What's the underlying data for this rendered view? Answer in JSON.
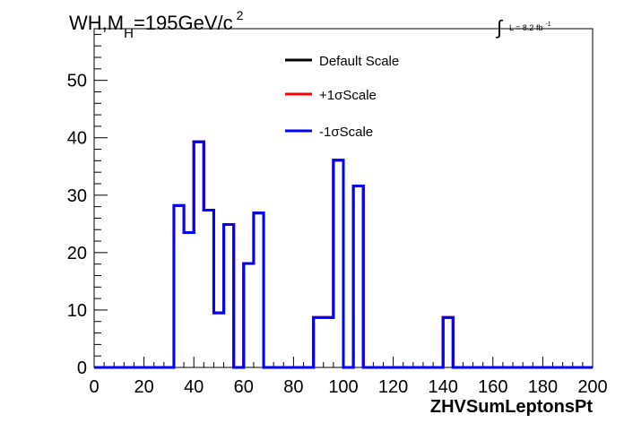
{
  "title": {
    "main": "WH,M",
    "subscript": "H",
    "value": "=195GeV/c",
    "superscript": "2"
  },
  "lumi": {
    "integral_symbol": "∫",
    "text": "L = 8.2 fb",
    "superscript": "-1"
  },
  "legend": [
    {
      "label": "Default Scale",
      "color": "#000000"
    },
    {
      "label": "+1σScale",
      "color": "#ff0000"
    },
    {
      "label": "-1σScale",
      "color": "#0000ff"
    }
  ],
  "chart_data": {
    "type": "line",
    "style": "step-histogram",
    "xlabel": "ZHVSumLeptonsPt",
    "ylabel": "",
    "xlim": [
      0,
      200
    ],
    "ylim": [
      0,
      59
    ],
    "x_ticks": [
      0,
      20,
      40,
      60,
      80,
      100,
      120,
      140,
      160,
      180,
      200
    ],
    "y_ticks": [
      0,
      10,
      20,
      30,
      40,
      50
    ],
    "bin_edges": [
      0,
      32,
      36,
      40,
      44,
      48,
      52,
      56,
      60,
      64,
      68,
      72,
      76,
      80,
      84,
      88,
      92,
      96,
      100,
      104,
      108,
      112,
      116,
      120,
      124,
      128,
      132,
      136,
      140,
      144,
      148,
      152,
      156,
      160,
      164,
      168,
      172,
      176,
      180,
      184,
      188,
      192,
      196,
      200
    ],
    "series": [
      {
        "name": "Default Scale",
        "color": "#000000",
        "values": [
          0,
          28.2,
          23.5,
          39.3,
          27.4,
          9.5,
          24.9,
          0,
          18.1,
          26.9,
          0,
          0,
          0,
          0,
          0,
          8.7,
          8.7,
          36.1,
          0,
          31.6,
          0,
          0,
          0,
          0,
          0,
          0,
          0,
          0,
          8.7,
          0,
          0,
          0,
          0,
          0,
          0,
          0,
          0,
          0,
          0,
          0,
          0,
          0,
          0
        ]
      },
      {
        "name": "+1σScale",
        "color": "#ff0000",
        "values": [
          0,
          28.2,
          23.5,
          39.3,
          27.4,
          9.5,
          24.9,
          0,
          18.1,
          26.9,
          0,
          0,
          0,
          0,
          0,
          8.7,
          8.7,
          36.1,
          0,
          31.6,
          0,
          0,
          0,
          0,
          0,
          0,
          0,
          0,
          8.7,
          0,
          0,
          0,
          0,
          0,
          0,
          0,
          0,
          0,
          0,
          0,
          0,
          0,
          0
        ]
      },
      {
        "name": "-1σScale",
        "color": "#0000ff",
        "values": [
          0,
          28.2,
          23.5,
          39.3,
          27.4,
          9.5,
          24.9,
          0,
          18.1,
          26.9,
          0,
          0,
          0,
          0,
          0,
          8.7,
          8.7,
          36.1,
          0,
          31.6,
          0,
          0,
          0,
          0,
          0,
          0,
          0,
          0,
          8.7,
          0,
          0,
          0,
          0,
          0,
          0,
          0,
          0,
          0,
          0,
          0,
          0,
          0,
          0
        ]
      }
    ],
    "grid": false,
    "legend_position": "top-center"
  }
}
